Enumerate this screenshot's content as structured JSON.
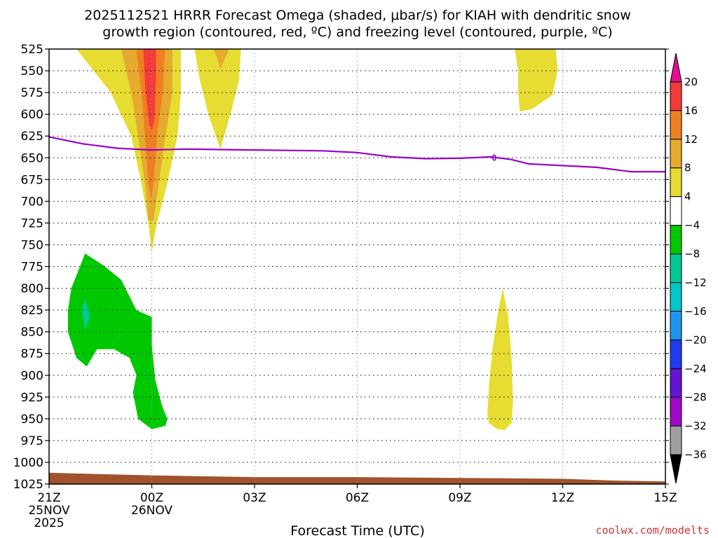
{
  "chart_data": {
    "type": "time-height-contour",
    "title_line1": "2025112521 HRRR Forecast Omega (shaded, μbar/s) for KIAH with dendritic snow",
    "title_line2": "growth region (contoured, red, ºC) and freezing level (contoured, purple, ºC)",
    "xlabel": "Forecast Time (UTC)",
    "credit": "coolwx.com/modelts",
    "x_range_hours": [
      0,
      18
    ],
    "y_range_hpa": [
      525,
      1025
    ],
    "y_ticks": [
      525,
      550,
      575,
      600,
      625,
      650,
      675,
      700,
      725,
      750,
      775,
      800,
      825,
      850,
      875,
      900,
      925,
      950,
      975,
      1000,
      1025
    ],
    "x_ticks": [
      {
        "hour": 0,
        "label": "21Z",
        "line2": "25NOV",
        "line3": "2025"
      },
      {
        "hour": 3,
        "label": "00Z",
        "line2": "26NOV",
        "line3": ""
      },
      {
        "hour": 6,
        "label": "03Z",
        "line2": "",
        "line3": ""
      },
      {
        "hour": 9,
        "label": "06Z",
        "line2": "",
        "line3": ""
      },
      {
        "hour": 12,
        "label": "09Z",
        "line2": "",
        "line3": ""
      },
      {
        "hour": 15,
        "label": "12Z",
        "line2": "",
        "line3": ""
      },
      {
        "hour": 18,
        "label": "15Z",
        "line2": "",
        "line3": ""
      }
    ],
    "colorbar": {
      "levels": [
        20,
        16,
        12,
        8,
        4,
        -4,
        -8,
        -12,
        -16,
        -20,
        -24,
        -28,
        -32,
        -36
      ],
      "colors": [
        "#e60e8c",
        "#f53a3a",
        "#ef7f22",
        "#e6aa2e",
        "#e6dc32",
        "#ffffff",
        "#00c800",
        "#00c896",
        "#00c8c8",
        "#1e96f0",
        "#1e3cf0",
        "#6414d2",
        "#a00ac8",
        "#a0a0a0",
        "#000000"
      ]
    },
    "freezing_level": {
      "label": "0",
      "points": [
        [
          0,
          626
        ],
        [
          1,
          634
        ],
        [
          2,
          639
        ],
        [
          3,
          641
        ],
        [
          4,
          640
        ],
        [
          5,
          640.5
        ],
        [
          6,
          641
        ],
        [
          7,
          641.5
        ],
        [
          8,
          642
        ],
        [
          9,
          644
        ],
        [
          10,
          649
        ],
        [
          11,
          651
        ],
        [
          12,
          650.5
        ],
        [
          12.9,
          649
        ],
        [
          13.5,
          652
        ],
        [
          14,
          657
        ],
        [
          15,
          659
        ],
        [
          16,
          661
        ],
        [
          17,
          666
        ],
        [
          18,
          666
        ]
      ]
    },
    "omega_regions": [
      {
        "level": 4,
        "points": [
          [
            0.8,
            525
          ],
          [
            1.3,
            550
          ],
          [
            1.8,
            575
          ],
          [
            2.4,
            625
          ],
          [
            2.7,
            680
          ],
          [
            2.9,
            725
          ],
          [
            3.0,
            758
          ],
          [
            3.15,
            725
          ],
          [
            3.45,
            680
          ],
          [
            3.75,
            625
          ],
          [
            3.85,
            575
          ],
          [
            3.85,
            525
          ]
        ]
      },
      {
        "level": 8,
        "points": [
          [
            2.1,
            525
          ],
          [
            2.4,
            575
          ],
          [
            2.6,
            625
          ],
          [
            2.8,
            680
          ],
          [
            2.9,
            722
          ],
          [
            3.05,
            722
          ],
          [
            3.2,
            680
          ],
          [
            3.4,
            625
          ],
          [
            3.6,
            575
          ],
          [
            3.6,
            525
          ]
        ]
      },
      {
        "level": 12,
        "points": [
          [
            2.55,
            525
          ],
          [
            2.7,
            575
          ],
          [
            2.8,
            625
          ],
          [
            2.9,
            680
          ],
          [
            2.98,
            697
          ],
          [
            3.05,
            680
          ],
          [
            3.15,
            625
          ],
          [
            3.32,
            575
          ],
          [
            3.38,
            525
          ]
        ]
      },
      {
        "level": 16,
        "points": [
          [
            2.75,
            525
          ],
          [
            2.82,
            575
          ],
          [
            2.92,
            610
          ],
          [
            3.0,
            620
          ],
          [
            3.08,
            605
          ],
          [
            3.12,
            560
          ],
          [
            3.12,
            525
          ]
        ]
      },
      {
        "level": 4,
        "points": [
          [
            4.25,
            525
          ],
          [
            4.4,
            560
          ],
          [
            4.65,
            600
          ],
          [
            5.0,
            640
          ],
          [
            5.3,
            600
          ],
          [
            5.55,
            560
          ],
          [
            5.6,
            525
          ]
        ]
      },
      {
        "level": 8,
        "points": [
          [
            4.8,
            525
          ],
          [
            4.9,
            535
          ],
          [
            5.0,
            548
          ],
          [
            5.15,
            535
          ],
          [
            5.25,
            525
          ]
        ]
      },
      {
        "level": 4,
        "points": [
          [
            13.6,
            525
          ],
          [
            13.7,
            550
          ],
          [
            13.7,
            575
          ],
          [
            13.75,
            597
          ],
          [
            14.1,
            594
          ],
          [
            14.7,
            578
          ],
          [
            14.85,
            550
          ],
          [
            14.8,
            525
          ]
        ]
      },
      {
        "level": 4,
        "points": [
          [
            12.8,
            945
          ],
          [
            12.85,
            910
          ],
          [
            12.95,
            870
          ],
          [
            13.1,
            830
          ],
          [
            13.25,
            800
          ],
          [
            13.4,
            830
          ],
          [
            13.5,
            875
          ],
          [
            13.55,
            930
          ],
          [
            13.5,
            955
          ],
          [
            13.3,
            963
          ],
          [
            13.1,
            962
          ],
          [
            12.85,
            955
          ]
        ]
      },
      {
        "level": -4,
        "points": [
          [
            0.55,
            825
          ],
          [
            0.65,
            800
          ],
          [
            0.9,
            775
          ],
          [
            1.05,
            760
          ],
          [
            1.6,
            774
          ],
          [
            2.1,
            790
          ],
          [
            2.55,
            825
          ],
          [
            3.0,
            833
          ],
          [
            3.0,
            865
          ],
          [
            3.1,
            905
          ],
          [
            3.3,
            935
          ],
          [
            3.45,
            950
          ],
          [
            3.4,
            958
          ],
          [
            3.0,
            962
          ],
          [
            2.6,
            950
          ],
          [
            2.45,
            920
          ],
          [
            2.55,
            900
          ],
          [
            2.35,
            880
          ],
          [
            1.9,
            870
          ],
          [
            1.4,
            870
          ],
          [
            1.1,
            890
          ],
          [
            0.8,
            880
          ],
          [
            0.55,
            850
          ]
        ]
      },
      {
        "level": -8,
        "points": [
          [
            0.95,
            825
          ],
          [
            1.05,
            812
          ],
          [
            1.2,
            832
          ],
          [
            1.05,
            848
          ]
        ]
      }
    ],
    "terrain": {
      "color": "#a0522d",
      "points": [
        [
          0,
          1012
        ],
        [
          3,
          1015
        ],
        [
          6,
          1017
        ],
        [
          9,
          1017
        ],
        [
          12,
          1018
        ],
        [
          15,
          1019
        ],
        [
          16.5,
          1021
        ],
        [
          18,
          1022
        ]
      ]
    }
  }
}
